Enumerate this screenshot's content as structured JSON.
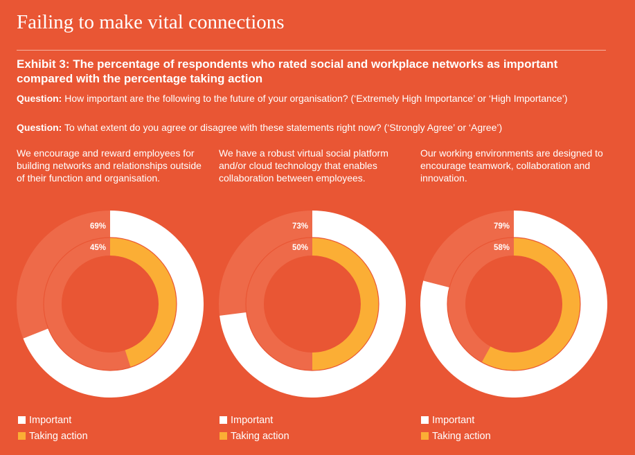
{
  "page_title": "Failing to make vital connections",
  "exhibit_title": "Exhibit 3: The percentage of respondents who rated social and workplace networks as important compared with the percentage taking action",
  "questions": [
    {
      "label": "Question:",
      "text": " How important are the following to the future of your organisation? (‘Extremely High Importance’ or ‘High Importance’)"
    },
    {
      "label": "Question:",
      "text": " To what extent do you agree or disagree with these statements right now? (‘Strongly Agree’ or ‘Agree’)"
    }
  ],
  "colors": {
    "background": "#E95634",
    "important": "#FFFFFF",
    "taking_action": "#FBAE35",
    "track": "#EE6A49"
  },
  "legend": {
    "important": "Important",
    "taking_action": "Taking action"
  },
  "chart_data": [
    {
      "type": "pie",
      "subtype": "concentric-donut",
      "description": "We encourage and reward employees for building networks and relationships outside of their function and organisation.",
      "series": [
        {
          "name": "Important",
          "value": 69,
          "label": "69%"
        },
        {
          "name": "Taking action",
          "value": 45,
          "label": "45%"
        }
      ]
    },
    {
      "type": "pie",
      "subtype": "concentric-donut",
      "description": "We have a robust virtual social platform and/or cloud technology that enables collaboration between employees.",
      "series": [
        {
          "name": "Important",
          "value": 73,
          "label": "73%"
        },
        {
          "name": "Taking action",
          "value": 50,
          "label": "50%"
        }
      ]
    },
    {
      "type": "pie",
      "subtype": "concentric-donut",
      "description": "Our working environments are designed to encourage teamwork, collaboration and innovation.",
      "series": [
        {
          "name": "Important",
          "value": 79,
          "label": "79%"
        },
        {
          "name": "Taking action",
          "value": 58,
          "label": "58%"
        }
      ]
    }
  ]
}
